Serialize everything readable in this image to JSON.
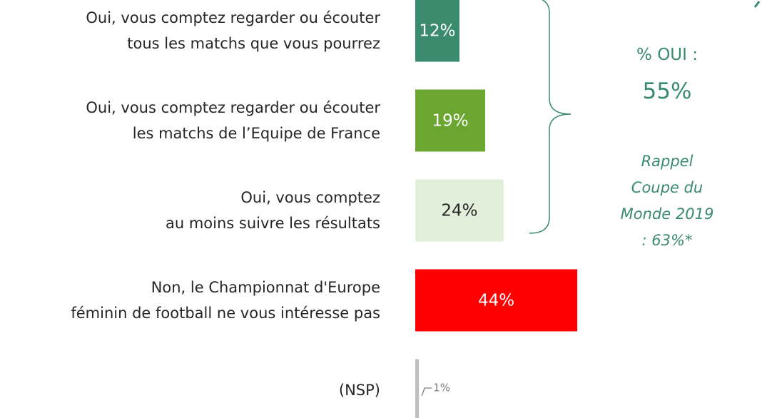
{
  "chart_data": {
    "type": "bar",
    "orientation": "horizontal",
    "categories": [
      "Oui, vous comptez regarder ou écouter\ntous les matchs que vous pourrez",
      "Oui, vous comptez regarder ou écouter\nles matchs de l’Equipe de France",
      "Oui, vous comptez\nau moins suivre les résultats",
      "Non, le Championnat d'Europe\nféminin de football ne vous intéresse pas",
      "(NSP)"
    ],
    "values": [
      12,
      19,
      24,
      44,
      1
    ],
    "value_labels": [
      "12%",
      "19%",
      "24%",
      "44%",
      "1%"
    ],
    "colors": [
      "#3a8a6e",
      "#6aa630",
      "#e2efda",
      "#ff0000",
      "#bfbfbf"
    ],
    "annotations": [
      "% OUI :",
      "55%",
      "Rappel Coupe du\nMonde 2019 : 63%*"
    ]
  }
}
